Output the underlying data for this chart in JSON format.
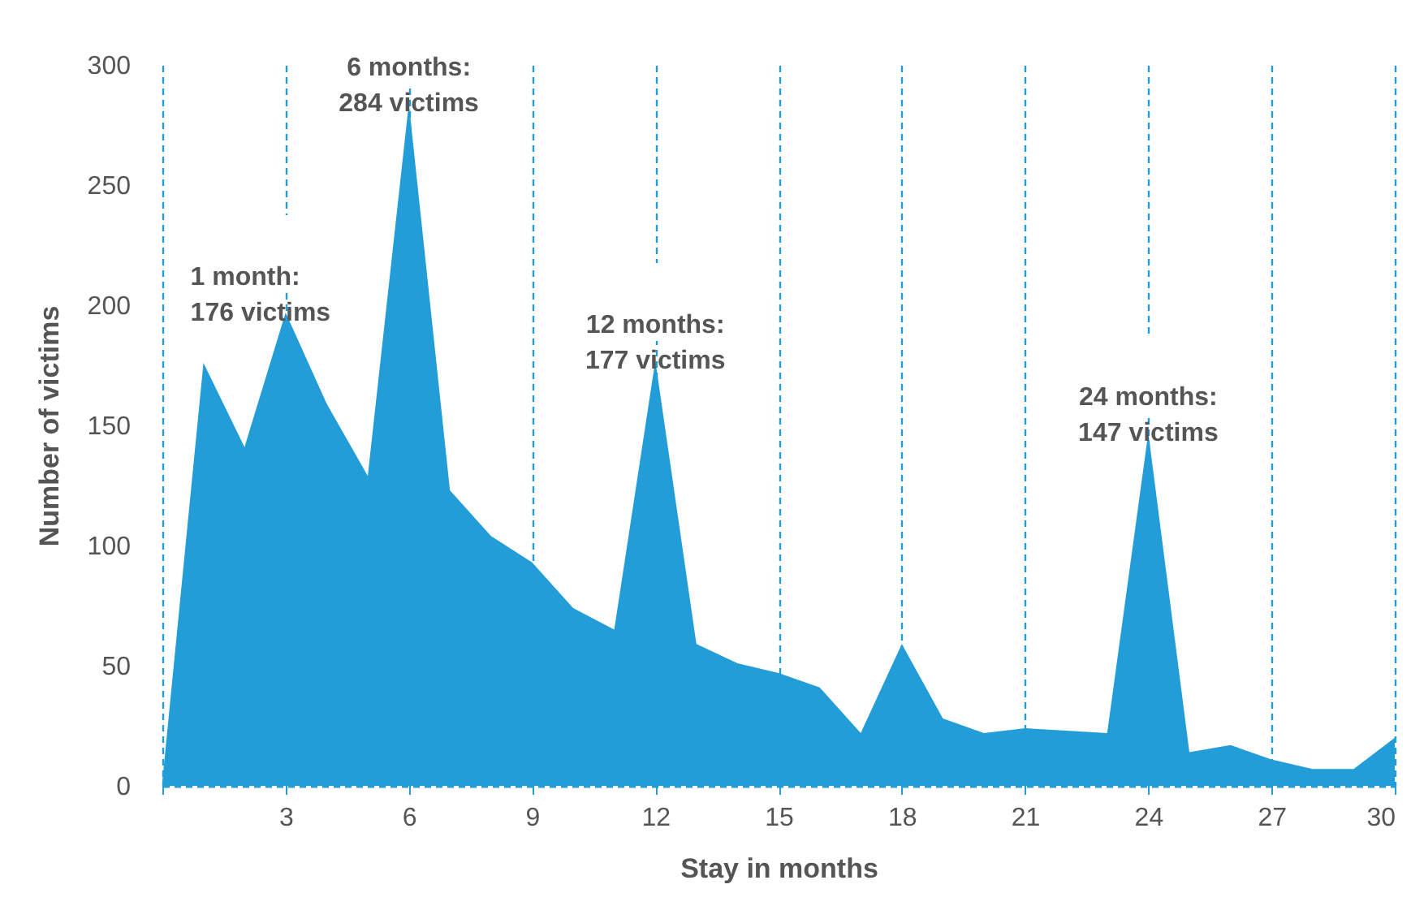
{
  "chart_data": {
    "type": "area",
    "xlabel": "Stay in months",
    "ylabel": "Number of victims",
    "x": [
      0,
      1,
      2,
      3,
      4,
      5,
      6,
      7,
      8,
      9,
      10,
      11,
      12,
      13,
      14,
      15,
      16,
      17,
      18,
      19,
      20,
      21,
      22,
      23,
      24,
      25,
      26,
      27,
      28,
      29,
      30
    ],
    "series": [
      {
        "color": "#239dd8",
        "values": [
          2,
          176,
          141,
          197,
          159,
          129,
          284,
          123,
          104,
          93,
          74,
          65,
          177,
          59,
          51,
          47,
          41,
          22,
          59,
          28,
          22,
          24,
          23,
          22,
          147,
          14,
          17,
          11,
          7,
          7,
          20
        ]
      }
    ],
    "xlim": [
      0,
      30
    ],
    "xticks": [
      {
        "value": 0,
        "label": null
      },
      3,
      6,
      9,
      12,
      15,
      18,
      21,
      24,
      27,
      30
    ],
    "ylim": [
      0,
      300
    ],
    "yticks": [
      0,
      50,
      100,
      150,
      200,
      250,
      300
    ],
    "grid": "x",
    "line_style": "dashed",
    "annotations": [
      {
        "text": "1 month:\n176 victims",
        "x": 1,
        "y": 176
      },
      {
        "text": "6 months:\n284 victims",
        "x": 6,
        "y": 284
      },
      {
        "text": "12 months:\n177 victims",
        "x": 12,
        "y": 177
      },
      {
        "text": "24 months:\n147 victims",
        "x": 24,
        "y": 147
      }
    ]
  }
}
